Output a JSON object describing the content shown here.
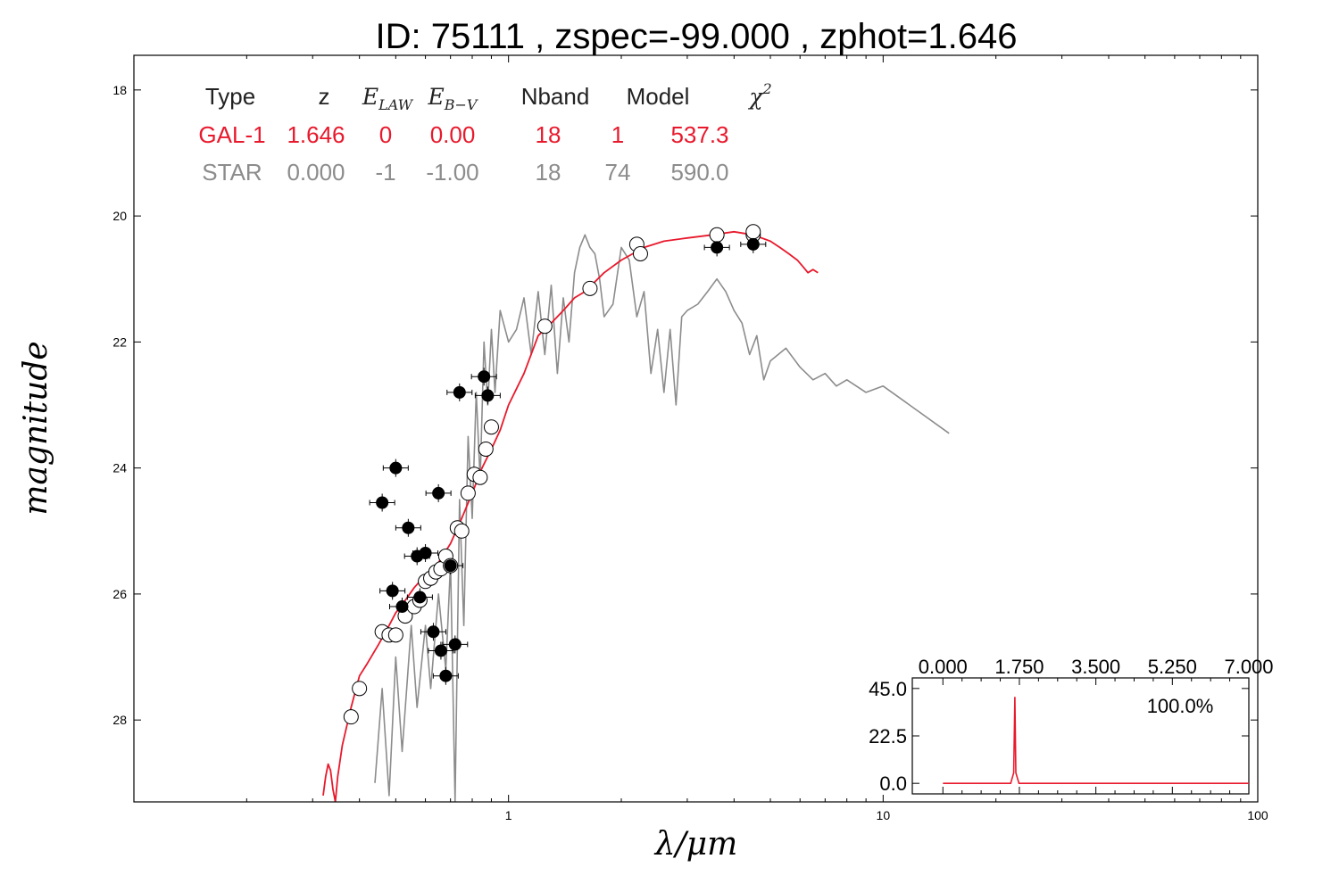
{
  "chart_data": [
    {
      "type": "scatter",
      "title": "ID:  75111 , zspec=-99.000 , zphot=1.646",
      "xlabel": "λ/μm",
      "ylabel": "magnitude",
      "xscale": "log",
      "xlim": [
        0.1,
        100
      ],
      "ylim": [
        29.3,
        17.45
      ],
      "y_inverted": true,
      "x_tick_labels": [
        "1",
        "10",
        "100"
      ],
      "x_tick_values": [
        1,
        10,
        100
      ],
      "y_tick_labels": [
        "18",
        "20",
        "22",
        "24",
        "26",
        "28"
      ],
      "y_tick_values": [
        18,
        20,
        22,
        24,
        26,
        28
      ],
      "grid": false,
      "colors": {
        "galaxy": "#e8192c",
        "star": "#8c8c8c",
        "observed": "#000000",
        "model_mag": "#ffffff"
      },
      "table": {
        "headers": [
          "Type",
          "z",
          "E_LAW",
          "E_B−V",
          "Nband",
          "Model",
          "χ2"
        ],
        "header_kinds": [
          "text",
          "text",
          "math",
          "math",
          "text",
          "text",
          "math"
        ],
        "math_base": [
          "",
          "",
          "E",
          "E",
          "",
          "",
          "χ"
        ],
        "math_sub": [
          "",
          "",
          "LAW",
          "B−V",
          "",
          "",
          ""
        ],
        "math_sup": [
          "",
          "",
          "",
          "",
          "",
          "",
          "2"
        ],
        "rows": [
          {
            "color": "#e8192c",
            "cells": [
              "GAL-1",
              "1.646",
              "0",
              "0.00",
              "18",
              "1",
              "537.3"
            ]
          },
          {
            "color": "#8c8c8c",
            "cells": [
              "STAR",
              "0.000",
              "-1",
              "-1.00",
              "18",
              "74",
              "590.0"
            ]
          }
        ]
      },
      "series": [
        {
          "name": "GAL-1",
          "style": "line",
          "x": [
            0.32,
            0.325,
            0.33,
            0.335,
            0.34,
            0.345,
            0.35,
            0.36,
            0.38,
            0.4,
            0.42,
            0.45,
            0.48,
            0.5,
            0.53,
            0.56,
            0.6,
            0.65,
            0.7,
            0.75,
            0.8,
            0.85,
            0.9,
            0.95,
            1.0,
            1.1,
            1.2,
            1.3,
            1.4,
            1.5,
            1.6,
            1.8,
            2.0,
            2.3,
            2.6,
            3.0,
            3.5,
            4.0,
            4.5,
            5.0,
            5.3,
            5.6,
            5.9,
            6.1,
            6.3,
            6.5,
            6.7
          ],
          "y": [
            29.2,
            28.9,
            28.7,
            28.8,
            29.1,
            29.3,
            28.9,
            28.4,
            27.8,
            27.3,
            27.1,
            26.8,
            26.5,
            26.3,
            26.1,
            25.9,
            25.7,
            25.5,
            25.2,
            24.8,
            24.4,
            24.0,
            23.7,
            23.4,
            23.0,
            22.5,
            21.9,
            21.7,
            21.5,
            21.3,
            21.2,
            20.9,
            20.7,
            20.5,
            20.4,
            20.35,
            20.3,
            20.25,
            20.3,
            20.4,
            20.5,
            20.6,
            20.7,
            20.8,
            20.9,
            20.85,
            20.9
          ]
        },
        {
          "name": "STAR",
          "style": "line",
          "x": [
            0.44,
            0.46,
            0.48,
            0.5,
            0.52,
            0.55,
            0.57,
            0.6,
            0.62,
            0.65,
            0.68,
            0.7,
            0.72,
            0.74,
            0.76,
            0.78,
            0.8,
            0.82,
            0.84,
            0.86,
            0.88,
            0.9,
            0.92,
            0.95,
            1.0,
            1.05,
            1.1,
            1.15,
            1.2,
            1.25,
            1.3,
            1.35,
            1.4,
            1.45,
            1.5,
            1.55,
            1.6,
            1.65,
            1.7,
            1.75,
            1.8,
            1.9,
            2.0,
            2.1,
            2.2,
            2.3,
            2.4,
            2.5,
            2.6,
            2.7,
            2.8,
            2.9,
            3.0,
            3.2,
            3.4,
            3.6,
            3.8,
            4.0,
            4.2,
            4.4,
            4.6,
            4.8,
            5.0,
            5.5,
            6.0,
            6.5,
            7.0,
            7.5,
            8.0,
            9.0,
            10.0,
            15.0
          ],
          "y": [
            29.0,
            27.5,
            29.2,
            27.0,
            28.5,
            26.5,
            27.8,
            26.5,
            27.5,
            26.0,
            27.2,
            25.5,
            29.3,
            24.5,
            26.5,
            23.5,
            24.8,
            22.8,
            24.2,
            22.0,
            23.0,
            21.8,
            22.8,
            21.5,
            22.0,
            21.8,
            21.3,
            22.2,
            21.2,
            22.2,
            21.1,
            22.5,
            21.3,
            22.0,
            20.9,
            20.5,
            20.3,
            20.5,
            20.6,
            21.0,
            21.6,
            21.4,
            20.5,
            20.7,
            21.6,
            21.2,
            22.5,
            21.8,
            22.8,
            21.8,
            23.0,
            21.6,
            21.5,
            21.4,
            21.2,
            21.0,
            21.2,
            21.5,
            21.7,
            22.2,
            21.9,
            22.6,
            22.3,
            22.1,
            22.4,
            22.6,
            22.5,
            22.7,
            22.6,
            22.8,
            22.7,
            23.45
          ]
        },
        {
          "name": "model magnitudes",
          "style": "open-circle",
          "x": [
            0.38,
            0.4,
            0.46,
            0.48,
            0.5,
            0.53,
            0.56,
            0.58,
            0.6,
            0.62,
            0.64,
            0.66,
            0.68,
            0.7,
            0.73,
            0.75,
            0.78,
            0.81,
            0.84,
            0.87,
            0.9,
            1.25,
            1.65,
            2.2,
            2.25,
            3.6,
            4.5,
            4.5
          ],
          "y": [
            27.95,
            27.5,
            26.6,
            26.65,
            26.65,
            26.35,
            26.2,
            26.1,
            25.8,
            25.75,
            25.65,
            25.6,
            25.4,
            25.55,
            24.95,
            25.0,
            24.4,
            24.1,
            24.15,
            23.7,
            23.35,
            21.75,
            21.15,
            20.45,
            20.6,
            20.3,
            20.3,
            20.25
          ]
        },
        {
          "name": "observed magnitudes",
          "style": "filled-circle",
          "x": [
            0.46,
            0.5,
            0.49,
            0.52,
            0.54,
            0.57,
            0.58,
            0.6,
            0.63,
            0.65,
            0.66,
            0.68,
            0.7,
            0.72,
            0.74,
            0.86,
            0.88,
            3.6,
            4.5
          ],
          "y": [
            24.55,
            24.0,
            25.95,
            26.2,
            24.95,
            25.4,
            26.05,
            25.35,
            26.6,
            24.4,
            26.9,
            27.3,
            25.55,
            26.8,
            22.8,
            22.55,
            22.85,
            20.5,
            20.45
          ]
        }
      ]
    },
    {
      "type": "line",
      "inset": true,
      "label": "100.0%",
      "xlim": [
        -0.7,
        7.0
      ],
      "ylim": [
        -5,
        50
      ],
      "x_tick_labels": [
        "0.000",
        "1.750",
        "3.500",
        "5.250",
        "7.000"
      ],
      "x_tick_values": [
        0,
        1.75,
        3.5,
        5.25,
        7.0
      ],
      "y_tick_labels": [
        "0.0",
        "22.5",
        "45.0"
      ],
      "y_tick_values": [
        0,
        22.5,
        45
      ],
      "series": [
        {
          "color": "#e8192c",
          "x": [
            0,
            1.55,
            1.62,
            1.646,
            1.67,
            1.74,
            7.0
          ],
          "y": [
            0,
            0,
            5,
            41,
            5,
            0,
            0
          ]
        }
      ]
    }
  ]
}
